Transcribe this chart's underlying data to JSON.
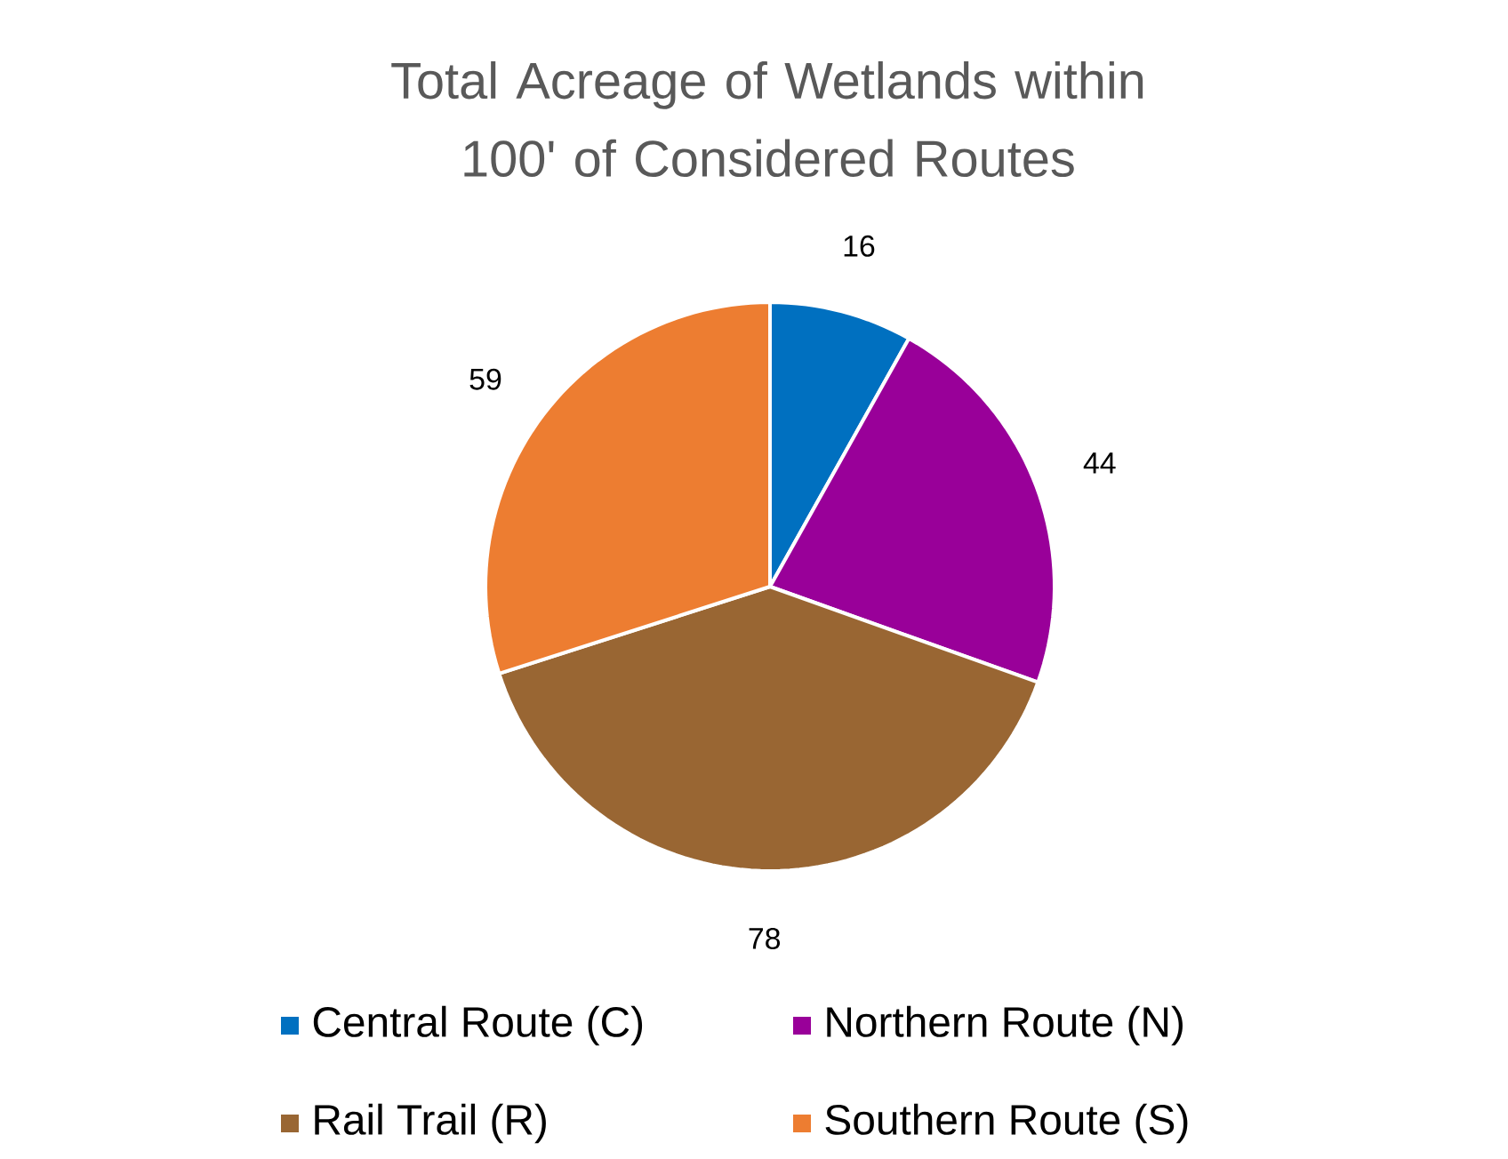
{
  "chart_data": {
    "type": "pie",
    "title": "Total Acreage of Wetlands within 100' of Considered Routes",
    "categories": [
      "Central Route (C)",
      "Northern Route (N)",
      "Rail Trail (R)",
      "Southern Route (S)"
    ],
    "values": [
      16,
      44,
      78,
      59
    ],
    "colors": [
      "#0070c0",
      "#990099",
      "#996633",
      "#ed7d31"
    ],
    "data_labels": true,
    "legend": "bottom"
  }
}
